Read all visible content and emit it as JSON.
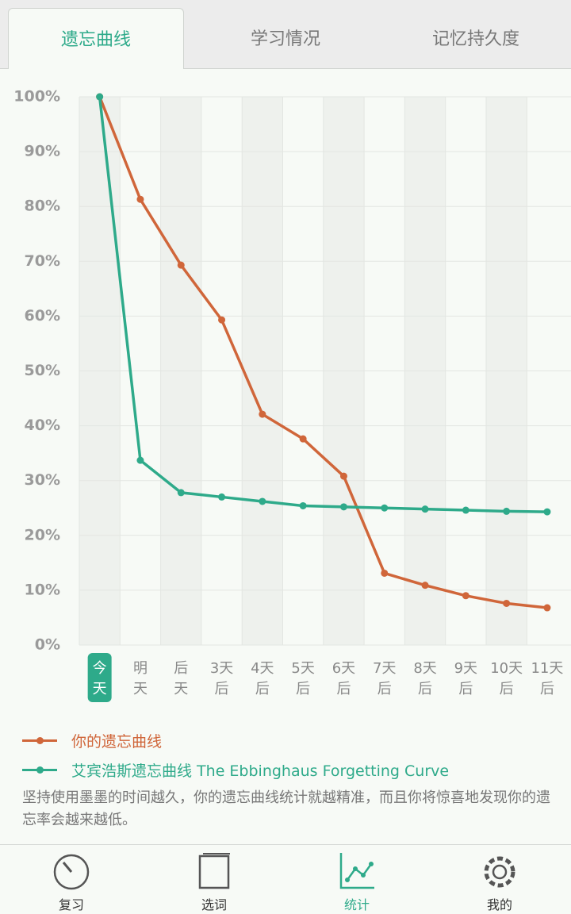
{
  "tabs": [
    "遗忘曲线",
    "学习情况",
    "记忆持久度"
  ],
  "chart_data": {
    "type": "line",
    "categories": [
      "今天",
      "明天",
      "后天",
      "3天后",
      "4天后",
      "5天后",
      "6天后",
      "7天后",
      "8天后",
      "9天后",
      "10天后",
      "11天后"
    ],
    "series": [
      {
        "name": "你的遗忘曲线",
        "color": "#d0663a",
        "values": [
          100,
          81.3,
          69.3,
          59.3,
          42.1,
          37.6,
          30.8,
          13.1,
          10.9,
          9.0,
          7.6,
          6.8
        ]
      },
      {
        "name": "艾宾浩斯遗忘曲线 The Ebbinghaus Forgetting Curve",
        "color": "#2eaa8a",
        "values": [
          100,
          33.7,
          27.8,
          27.0,
          26.2,
          25.4,
          25.2,
          25.0,
          24.8,
          24.6,
          24.4,
          24.3
        ]
      }
    ],
    "ylim": [
      0,
      100
    ],
    "yticks": [
      {
        "value": 0,
        "label": "0%"
      },
      {
        "value": 10,
        "label": "10%"
      },
      {
        "value": 20,
        "label": "20%"
      },
      {
        "value": 30,
        "label": "30%"
      },
      {
        "value": 40,
        "label": "40%"
      },
      {
        "value": 50,
        "label": "50%"
      },
      {
        "value": 60,
        "label": "60%"
      },
      {
        "value": 70,
        "label": "70%"
      },
      {
        "value": 80,
        "label": "80%"
      },
      {
        "value": 90,
        "label": "90%"
      },
      {
        "value": 100,
        "label": "100%"
      }
    ],
    "grid": true
  },
  "note": "坚持使用墨墨的时间越久，你的遗忘曲线统计就越精准，而且你将惊喜地发现你的遗忘率会越来越低。",
  "nav": [
    "复习",
    "选词",
    "统计",
    "我的"
  ]
}
